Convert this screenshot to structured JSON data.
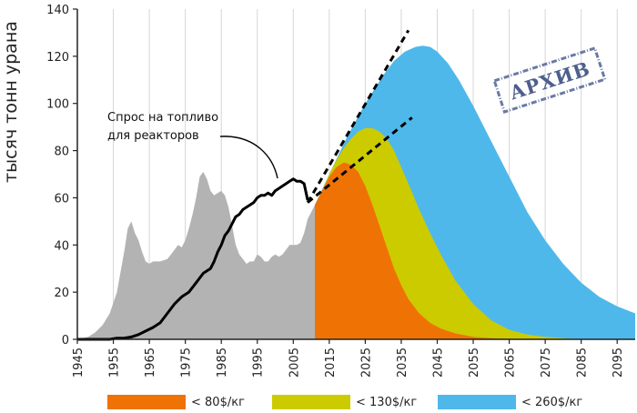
{
  "chart_data": {
    "type": "area",
    "ylabel": "тысяч тонн урана",
    "ylim": [
      0,
      140
    ],
    "xlim": [
      1945,
      2100
    ],
    "yticks": [
      0,
      20,
      40,
      60,
      80,
      100,
      120,
      140
    ],
    "xticks": [
      1945,
      1955,
      1965,
      1975,
      1985,
      1995,
      2005,
      2015,
      2025,
      2035,
      2045,
      2055,
      2065,
      2075,
      2085,
      2095
    ],
    "grid": "vertical",
    "legend_position": "bottom",
    "annotation": "Спрос на топливо\nдля реакторов",
    "stamp": "АРХИВ",
    "colors": {
      "historical": "#b3b3b3",
      "lt80": "#ef7204",
      "lt130": "#cccb00",
      "lt260": "#4fb8ea",
      "demand": "#000000"
    },
    "series": [
      {
        "key": "historical",
        "x": [
          1945,
          1948,
          1950,
          1952,
          1954,
          1956,
          1958,
          1959,
          1960,
          1961,
          1962,
          1963,
          1964,
          1965,
          1966,
          1968,
          1970,
          1971,
          1972,
          1973,
          1974,
          1975,
          1976,
          1977,
          1978,
          1979,
          1980,
          1981,
          1982,
          1983,
          1984,
          1985,
          1986,
          1987,
          1988,
          1989,
          1990,
          1991,
          1992,
          1993,
          1994,
          1995,
          1996,
          1997,
          1998,
          1999,
          2000,
          2001,
          2002,
          2003,
          2004,
          2005,
          2006,
          2007,
          2008,
          2009,
          2010,
          2011
        ],
        "values": [
          0,
          1,
          3,
          6,
          11,
          20,
          37,
          47,
          50,
          45,
          42,
          37,
          33,
          32,
          33,
          33,
          34,
          36,
          38,
          40,
          39,
          42,
          47,
          53,
          60,
          69,
          71,
          68,
          63,
          61,
          62,
          63,
          61,
          56,
          48,
          40,
          36,
          34,
          32,
          33,
          33,
          36,
          35,
          33,
          33,
          35,
          36,
          35,
          36,
          38,
          40,
          40,
          40,
          41,
          45,
          51,
          54,
          57
        ]
      },
      {
        "key": "lt80",
        "name": "< 80$/кг",
        "x": [
          2011,
          2013,
          2015,
          2017,
          2019,
          2021,
          2023,
          2025,
          2027,
          2029,
          2031,
          2033,
          2035,
          2037,
          2040,
          2043,
          2046,
          2050,
          2055,
          2060,
          2065,
          2070,
          2075
        ],
        "values": [
          57,
          63,
          69,
          73,
          75,
          74,
          71,
          65,
          57,
          48,
          39,
          30,
          23,
          17,
          11,
          7,
          4.5,
          2.5,
          1,
          0.5,
          0.2,
          0.1,
          0
        ]
      },
      {
        "key": "lt130",
        "name": "< 130$/кг",
        "x": [
          2011,
          2013,
          2015,
          2017,
          2019,
          2021,
          2023,
          2025,
          2027,
          2029,
          2031,
          2033,
          2035,
          2037,
          2040,
          2043,
          2046,
          2050,
          2055,
          2060,
          2065,
          2070,
          2075,
          2080,
          2085
        ],
        "values": [
          57,
          63,
          70,
          76,
          81,
          85,
          88,
          89.5,
          89.5,
          88,
          85,
          80,
          73,
          66,
          55,
          45,
          36,
          25,
          15,
          8,
          4,
          2,
          1,
          0.5,
          0
        ]
      },
      {
        "key": "lt260",
        "name": "< 260$/кг",
        "x": [
          2011,
          2015,
          2020,
          2025,
          2030,
          2033,
          2036,
          2039,
          2041,
          2043,
          2045,
          2048,
          2051,
          2055,
          2060,
          2065,
          2070,
          2075,
          2080,
          2085,
          2090,
          2095,
          2100
        ],
        "values": [
          57,
          70,
          86,
          100,
          112,
          118,
          122,
          124,
          124.5,
          124,
          122,
          117,
          110,
          99,
          84,
          69,
          54,
          42,
          32,
          24,
          18,
          14,
          11
        ]
      },
      {
        "key": "demand",
        "x": [
          1945,
          1950,
          1954,
          1956,
          1958,
          1960,
          1962,
          1964,
          1966,
          1968,
          1970,
          1972,
          1974,
          1976,
          1978,
          1980,
          1981,
          1982,
          1983,
          1984,
          1985,
          1986,
          1987,
          1988,
          1989,
          1990,
          1991,
          1992,
          1993,
          1994,
          1995,
          1996,
          1997,
          1998,
          1999,
          2000,
          2001,
          2002,
          2003,
          2004,
          2005,
          2006,
          2007,
          2008,
          2009
        ],
        "values": [
          0,
          0,
          0,
          0.5,
          0.5,
          1,
          2,
          3.5,
          5,
          7,
          11,
          15,
          18,
          20,
          24,
          28,
          29,
          30,
          33,
          37,
          40,
          44,
          46,
          49,
          52,
          53,
          55,
          56,
          57,
          58,
          60,
          61,
          61,
          62,
          61,
          63,
          64,
          65,
          66,
          67,
          68,
          67,
          67,
          66,
          59
        ]
      }
    ],
    "projections": [
      {
        "key": "dash-high",
        "x": [
          2009,
          2037
        ],
        "values": [
          58,
          131
        ]
      },
      {
        "key": "dash-low",
        "x": [
          2009,
          2038
        ],
        "values": [
          58,
          94
        ]
      }
    ]
  }
}
